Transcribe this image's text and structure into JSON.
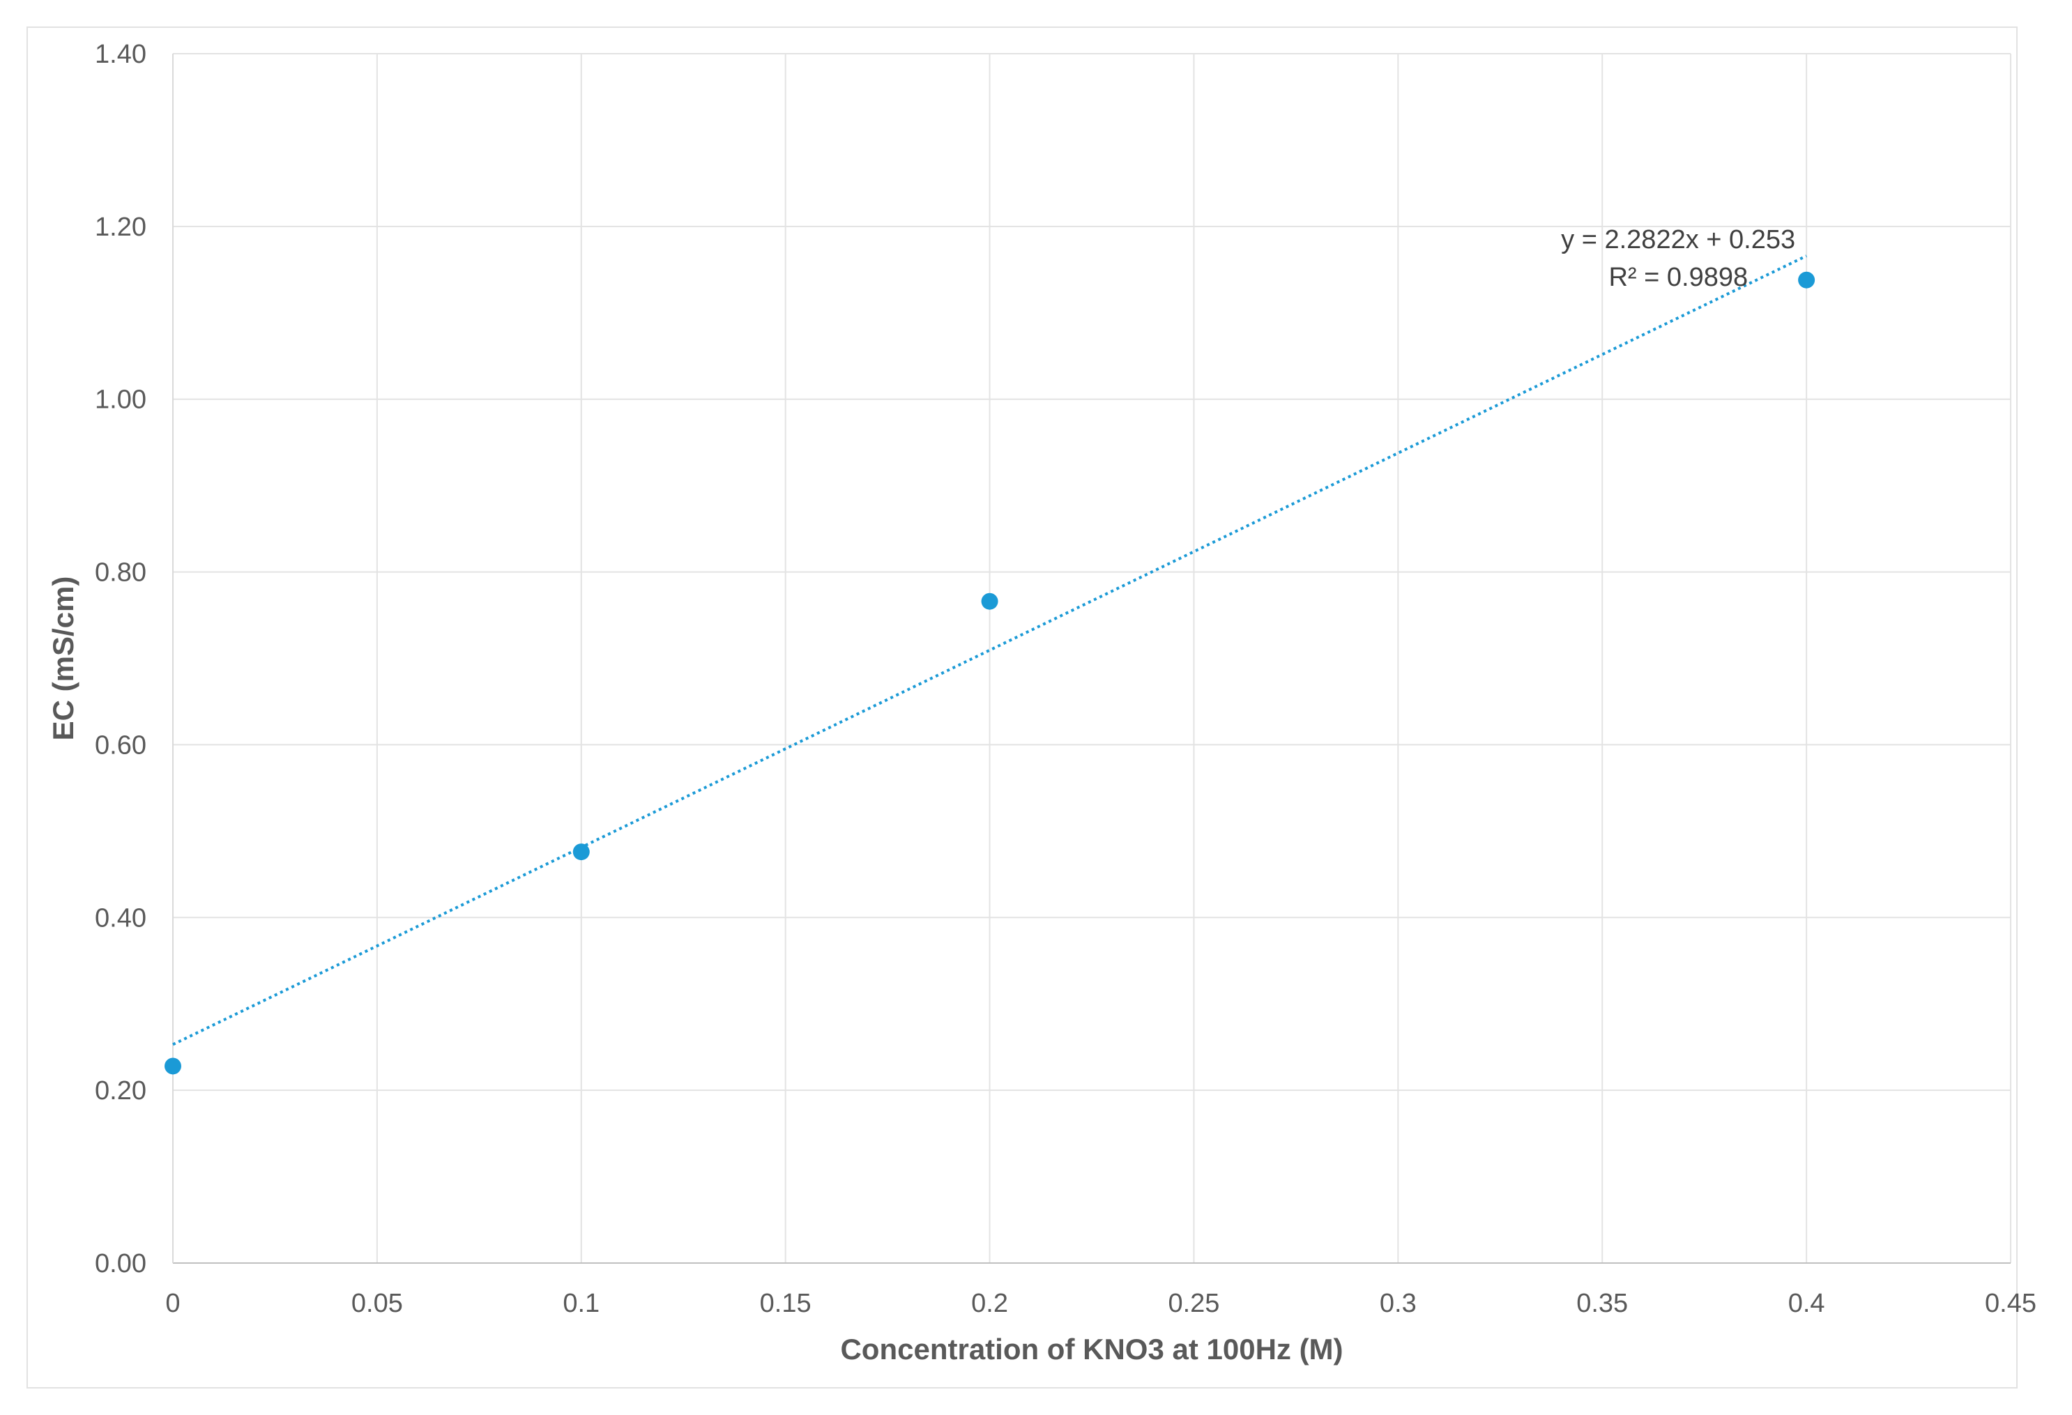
{
  "chart_data": {
    "type": "scatter",
    "title": "",
    "xlabel": "Concentration of KNO3  at 100Hz (M)",
    "ylabel": "EC (mS/cm)",
    "xlim": [
      0,
      0.45
    ],
    "ylim": [
      0,
      1.4
    ],
    "x_ticks": [
      "0",
      "0.05",
      "0.1",
      "0.15",
      "0.2",
      "0.25",
      "0.3",
      "0.35",
      "0.4",
      "0.45"
    ],
    "y_ticks": [
      "0.00",
      "0.20",
      "0.40",
      "0.60",
      "0.80",
      "1.00",
      "1.20",
      "1.40"
    ],
    "grid": true,
    "series": [
      {
        "x": [
          0,
          0.1,
          0.2,
          0.4
        ],
        "y": [
          0.228,
          0.476,
          0.766,
          1.138
        ],
        "color": "#1b9ad6"
      }
    ],
    "trendline": {
      "type": "linear",
      "slope": 2.2822,
      "intercept": 0.253,
      "x_range": [
        0,
        0.4
      ],
      "style": "dotted",
      "color": "#1b9ad6"
    },
    "annotations": {
      "equation": "y = 2.2822x + 0.253",
      "r_squared": "R² = 0.9898"
    }
  }
}
